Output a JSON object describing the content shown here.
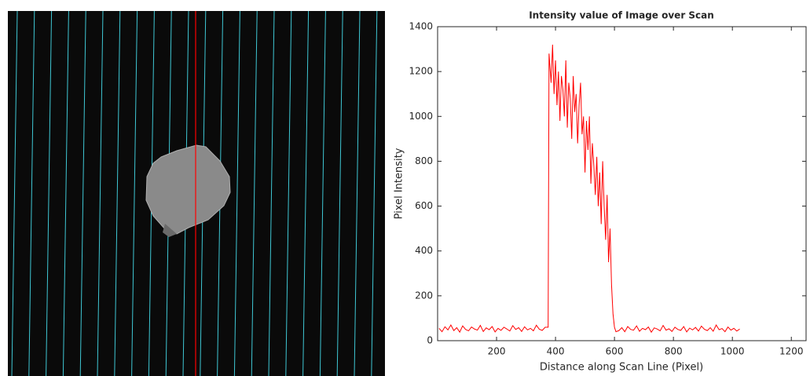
{
  "chart_data": {
    "type": "line",
    "title": "Intensity value of Image over Scan",
    "xlabel": "Distance along Scan Line (Pixel)",
    "ylabel": "Pixel Intensity",
    "color": "#ff0000",
    "x": [
      5,
      15,
      25,
      35,
      45,
      55,
      65,
      75,
      85,
      95,
      105,
      115,
      125,
      135,
      145,
      155,
      165,
      175,
      185,
      195,
      205,
      215,
      225,
      235,
      245,
      255,
      265,
      275,
      285,
      295,
      305,
      315,
      325,
      335,
      345,
      355,
      365,
      375,
      378,
      385,
      390,
      395,
      400,
      405,
      410,
      415,
      420,
      425,
      430,
      435,
      440,
      445,
      450,
      455,
      460,
      465,
      470,
      475,
      480,
      485,
      490,
      495,
      500,
      505,
      510,
      515,
      520,
      525,
      530,
      535,
      540,
      545,
      550,
      555,
      560,
      565,
      570,
      575,
      580,
      585,
      590,
      595,
      600,
      605,
      615,
      625,
      635,
      645,
      655,
      665,
      675,
      685,
      695,
      705,
      715,
      725,
      735,
      745,
      755,
      765,
      775,
      785,
      795,
      805,
      815,
      825,
      835,
      845,
      855,
      865,
      875,
      885,
      895,
      905,
      915,
      925,
      935,
      945,
      955,
      965,
      975,
      985,
      995,
      1005,
      1015,
      1025
    ],
    "values": [
      55,
      40,
      62,
      48,
      70,
      45,
      58,
      38,
      66,
      50,
      44,
      61,
      52,
      47,
      68,
      41,
      57,
      49,
      63,
      39,
      55,
      46,
      60,
      52,
      43,
      67,
      50,
      58,
      41,
      62,
      48,
      55,
      44,
      69,
      51,
      46,
      60,
      60,
      1280,
      1150,
      1320,
      1100,
      1250,
      1050,
      1200,
      980,
      1180,
      1120,
      1000,
      1250,
      950,
      1150,
      1080,
      900,
      1180,
      1020,
      1100,
      880,
      1050,
      1150,
      920,
      1000,
      750,
      980,
      850,
      1000,
      700,
      880,
      780,
      650,
      820,
      600,
      750,
      520,
      800,
      600,
      450,
      650,
      350,
      500,
      250,
      120,
      60,
      40,
      45,
      58,
      40,
      63,
      50,
      47,
      66,
      42,
      55,
      49,
      61,
      38,
      57,
      52,
      44,
      68,
      47,
      53,
      41,
      60,
      50,
      46,
      63,
      39,
      56,
      48,
      59,
      43,
      65,
      51,
      45,
      58,
      42,
      70,
      49,
      54,
      40,
      61,
      47,
      55,
      43,
      52
    ],
    "xlim": [
      0,
      1250
    ],
    "xticks": [
      200,
      400,
      600,
      800,
      1000,
      1200
    ],
    "ylim": [
      0,
      1400
    ],
    "yticks": [
      0,
      200,
      400,
      600,
      800,
      1000,
      1200,
      1400
    ]
  }
}
